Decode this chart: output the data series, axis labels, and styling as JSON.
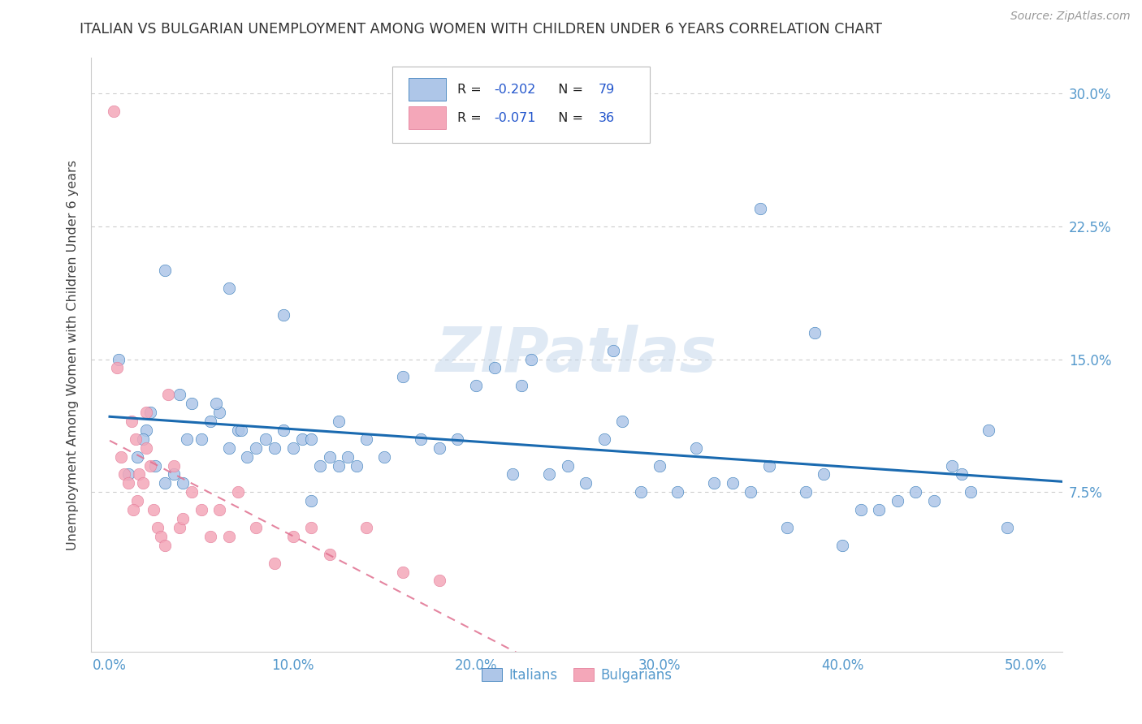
{
  "title": "ITALIAN VS BULGARIAN UNEMPLOYMENT AMONG WOMEN WITH CHILDREN UNDER 6 YEARS CORRELATION CHART",
  "source": "Source: ZipAtlas.com",
  "ylabel": "Unemployment Among Women with Children Under 6 years",
  "xlabel_ticks": [
    "0.0%",
    "10.0%",
    "20.0%",
    "30.0%",
    "40.0%",
    "50.0%"
  ],
  "xlabel_vals": [
    0,
    10,
    20,
    30,
    40,
    50
  ],
  "ylabel_ticks": [
    "7.5%",
    "15.0%",
    "22.5%",
    "30.0%"
  ],
  "ylabel_vals": [
    7.5,
    15.0,
    22.5,
    30.0
  ],
  "xlim": [
    -1.0,
    52
  ],
  "ylim": [
    -1.5,
    32
  ],
  "italian_R": "-0.202",
  "italian_N": "79",
  "bulgarian_R": "-0.071",
  "bulgarian_N": "36",
  "italian_color": "#aec6e8",
  "bulgarian_color": "#f4a7b9",
  "italian_line_color": "#1a6ab0",
  "bulgarian_line_color": "#e07090",
  "legend_italian_label": "Italians",
  "legend_bulgarian_label": "Bulgarians",
  "watermark": "ZIPatlas",
  "italian_x": [
    0.5,
    1.0,
    1.5,
    2.0,
    2.5,
    3.0,
    3.5,
    4.0,
    4.5,
    5.0,
    5.5,
    6.0,
    6.5,
    7.0,
    7.5,
    8.0,
    8.5,
    9.0,
    9.5,
    10.0,
    10.5,
    11.0,
    11.5,
    12.0,
    12.5,
    13.0,
    13.5,
    14.0,
    15.0,
    16.0,
    17.0,
    18.0,
    19.0,
    20.0,
    21.0,
    22.0,
    23.0,
    24.0,
    25.0,
    26.0,
    27.0,
    28.0,
    29.0,
    30.0,
    31.0,
    32.0,
    33.0,
    34.0,
    35.0,
    36.0,
    37.0,
    38.0,
    39.0,
    40.0,
    41.0,
    42.0,
    43.0,
    44.0,
    45.0,
    46.0,
    47.0,
    48.0,
    49.0,
    27.5,
    35.5,
    38.5,
    46.5,
    3.0,
    6.5,
    9.5,
    1.8,
    2.2,
    4.2,
    11.0,
    12.5,
    3.8,
    5.8,
    7.2,
    22.5
  ],
  "italian_y": [
    15.0,
    8.5,
    9.5,
    11.0,
    9.0,
    8.0,
    8.5,
    8.0,
    12.5,
    10.5,
    11.5,
    12.0,
    10.0,
    11.0,
    9.5,
    10.0,
    10.5,
    10.0,
    11.0,
    10.0,
    10.5,
    10.5,
    9.0,
    9.5,
    9.0,
    9.5,
    9.0,
    10.5,
    9.5,
    14.0,
    10.5,
    10.0,
    10.5,
    13.5,
    14.5,
    8.5,
    15.0,
    8.5,
    9.0,
    8.0,
    10.5,
    11.5,
    7.5,
    9.0,
    7.5,
    10.0,
    8.0,
    8.0,
    7.5,
    9.0,
    5.5,
    7.5,
    8.5,
    4.5,
    6.5,
    6.5,
    7.0,
    7.5,
    7.0,
    9.0,
    7.5,
    11.0,
    5.5,
    15.5,
    23.5,
    16.5,
    8.5,
    20.0,
    19.0,
    17.5,
    10.5,
    12.0,
    10.5,
    7.0,
    11.5,
    13.0,
    12.5,
    11.0,
    13.5
  ],
  "bulgarian_x": [
    0.2,
    0.4,
    0.6,
    0.8,
    1.0,
    1.2,
    1.4,
    1.6,
    1.8,
    2.0,
    2.2,
    2.4,
    2.6,
    2.8,
    3.0,
    3.2,
    3.5,
    3.8,
    4.0,
    4.5,
    5.0,
    5.5,
    6.0,
    6.5,
    7.0,
    8.0,
    9.0,
    10.0,
    11.0,
    12.0,
    14.0,
    16.0,
    18.0,
    1.5,
    2.0,
    1.3
  ],
  "bulgarian_y": [
    29.0,
    14.5,
    9.5,
    8.5,
    8.0,
    11.5,
    10.5,
    8.5,
    8.0,
    10.0,
    9.0,
    6.5,
    5.5,
    5.0,
    4.5,
    13.0,
    9.0,
    5.5,
    6.0,
    7.5,
    6.5,
    5.0,
    6.5,
    5.0,
    7.5,
    5.5,
    3.5,
    5.0,
    5.5,
    4.0,
    5.5,
    3.0,
    2.5,
    7.0,
    12.0,
    6.5
  ]
}
